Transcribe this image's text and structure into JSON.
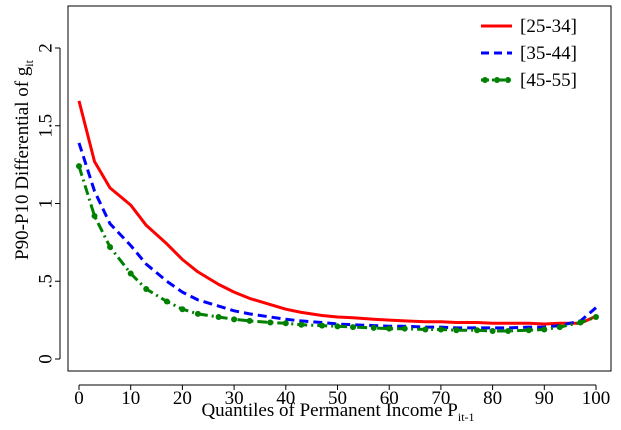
{
  "chart_data": {
    "type": "line",
    "xlabel": {
      "main": "Quantiles of Permanent Income P",
      "sub": "it-1"
    },
    "ylabel": {
      "main": "P90-P10 Differential of g",
      "sub": "it"
    },
    "xlim": [
      0,
      100
    ],
    "ylim": [
      0,
      2.15
    ],
    "xticks": [
      0,
      10,
      20,
      30,
      40,
      50,
      60,
      70,
      80,
      90,
      100
    ],
    "yticks": [
      {
        "value": 0,
        "label": "0"
      },
      {
        "value": 0.5,
        "label": ".5"
      },
      {
        "value": 1,
        "label": "1"
      },
      {
        "value": 1.5,
        "label": "1.5"
      },
      {
        "value": 2,
        "label": "2"
      }
    ],
    "grid": false,
    "legend_position": "top-right",
    "series": [
      {
        "name": "[25-34]",
        "color": "#ff0000",
        "style": "solid",
        "markers": false,
        "x": [
          0,
          3,
          6,
          10,
          13,
          17,
          20,
          23,
          27,
          30,
          33,
          37,
          40,
          43,
          47,
          50,
          53,
          57,
          60,
          63,
          67,
          70,
          73,
          77,
          80,
          83,
          87,
          90,
          93,
          97,
          100
        ],
        "y": [
          1.66,
          1.27,
          1.1,
          0.99,
          0.86,
          0.74,
          0.64,
          0.56,
          0.48,
          0.43,
          0.39,
          0.35,
          0.32,
          0.3,
          0.28,
          0.27,
          0.265,
          0.255,
          0.25,
          0.245,
          0.24,
          0.24,
          0.235,
          0.235,
          0.23,
          0.23,
          0.23,
          0.225,
          0.23,
          0.23,
          0.275
        ]
      },
      {
        "name": "[35-44]",
        "color": "#0000ff",
        "style": "dashed",
        "markers": false,
        "x": [
          0,
          3,
          6,
          10,
          13,
          17,
          20,
          23,
          27,
          30,
          33,
          37,
          40,
          43,
          47,
          50,
          53,
          57,
          60,
          63,
          67,
          70,
          73,
          77,
          80,
          83,
          87,
          90,
          93,
          97,
          100
        ],
        "y": [
          1.39,
          1.08,
          0.87,
          0.73,
          0.61,
          0.5,
          0.43,
          0.38,
          0.34,
          0.31,
          0.29,
          0.27,
          0.255,
          0.245,
          0.235,
          0.225,
          0.22,
          0.215,
          0.21,
          0.21,
          0.205,
          0.205,
          0.2,
          0.2,
          0.2,
          0.2,
          0.205,
          0.205,
          0.215,
          0.245,
          0.33
        ]
      },
      {
        "name": "[45-55]",
        "color": "#008000",
        "style": "dash-dot",
        "markers": true,
        "x": [
          0,
          3,
          6,
          10,
          13,
          17,
          20,
          23,
          27,
          30,
          33,
          37,
          40,
          43,
          47,
          50,
          53,
          57,
          60,
          63,
          67,
          70,
          73,
          77,
          80,
          83,
          87,
          90,
          93,
          97,
          100
        ],
        "y": [
          1.24,
          0.92,
          0.72,
          0.55,
          0.45,
          0.37,
          0.32,
          0.29,
          0.27,
          0.255,
          0.245,
          0.235,
          0.23,
          0.22,
          0.215,
          0.21,
          0.205,
          0.2,
          0.195,
          0.195,
          0.19,
          0.19,
          0.185,
          0.185,
          0.18,
          0.18,
          0.185,
          0.19,
          0.205,
          0.235,
          0.27
        ]
      }
    ]
  }
}
